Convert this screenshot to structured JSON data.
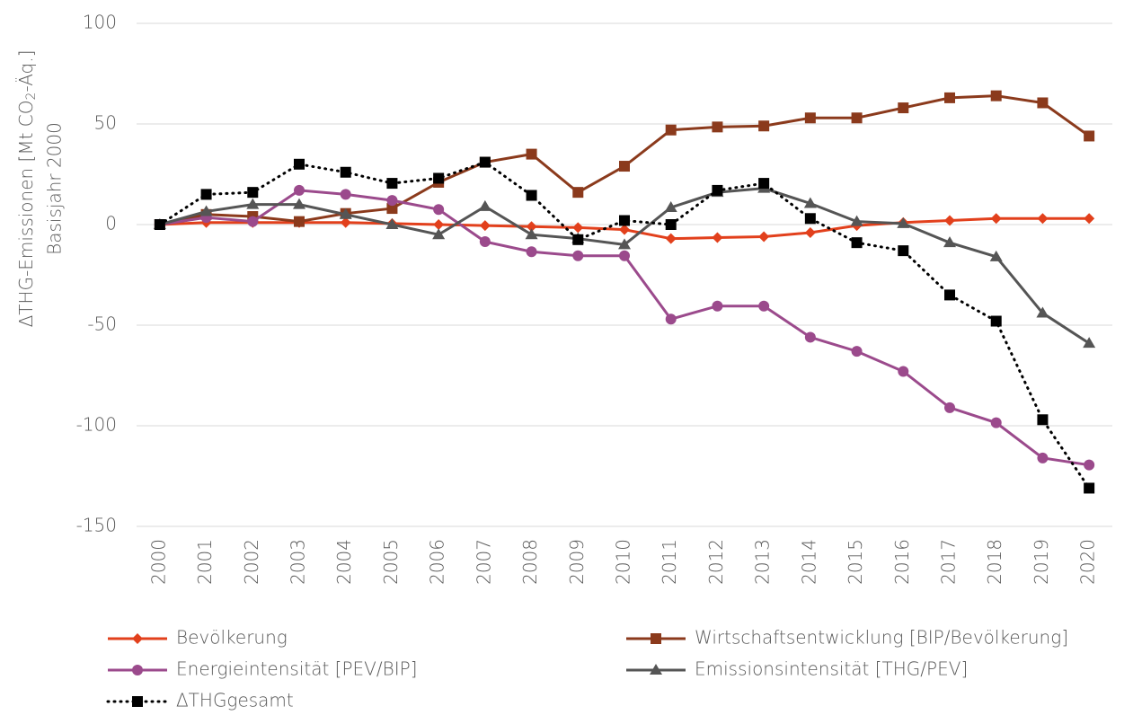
{
  "chart_data": {
    "type": "line",
    "ylabel": [
      "ΔTHG-Emissionen  [Mt CO",
      "2",
      "-Äq.]"
    ],
    "ylabel2": "Basisjahr 2000",
    "categories": [
      "2000",
      "2001",
      "2002",
      "2003",
      "2004",
      "2005",
      "2006",
      "2007",
      "2008",
      "2009",
      "2010",
      "2011",
      "2012",
      "2013",
      "2014",
      "2015",
      "2016",
      "2017",
      "2018",
      "2019",
      "2020"
    ],
    "ylim": [
      -150,
      100
    ],
    "yticks": [
      -150,
      -100,
      -50,
      0,
      50,
      100
    ],
    "grid": true,
    "legend": "bottom",
    "series": [
      {
        "name": "Bevölkerung",
        "color": "#e2401c",
        "marker": "diamond",
        "style": "solid",
        "values": [
          0,
          1,
          1,
          1,
          1,
          0.5,
          0,
          -0.5,
          -1,
          -1.5,
          -2.5,
          -7,
          -6.5,
          -6,
          -4,
          -0.5,
          1,
          2,
          3,
          3,
          3
        ]
      },
      {
        "name": "Wirtschaftsentwicklung [BIP/Bevölkerung]",
        "color": "#8b3a1c",
        "marker": "square",
        "style": "solid",
        "values": [
          0,
          5,
          4,
          1.5,
          5.5,
          8,
          21,
          31,
          35,
          16,
          29,
          47,
          48.5,
          49,
          53,
          53,
          58,
          63,
          64,
          60.5,
          44
        ]
      },
      {
        "name": "Energieintensität [PEV/BIP]",
        "color": "#9b4a8c",
        "marker": "circle",
        "style": "solid",
        "values": [
          0,
          3.5,
          1.5,
          17,
          15,
          12,
          7.5,
          -8.5,
          -13.5,
          -15.5,
          -15.5,
          -47,
          -40.5,
          -40.5,
          -56,
          -63,
          -73,
          -91,
          -98.5,
          -116,
          -119.5
        ]
      },
      {
        "name": "Emissionsintensität [THG/PEV]",
        "color": "#555555",
        "marker": "triangle",
        "style": "solid",
        "values": [
          0,
          6.5,
          10,
          10,
          5,
          0,
          -5,
          9,
          -5,
          -7,
          -10,
          8.5,
          16,
          18,
          10.5,
          1.5,
          0.5,
          -9,
          -16,
          -44,
          -59
        ]
      },
      {
        "name": "ΔTHGgesamt",
        "color": "#000000",
        "marker": "square",
        "style": "dotted",
        "values": [
          0,
          15,
          16,
          30,
          26,
          20.5,
          23,
          31,
          14.5,
          -7.5,
          2,
          0,
          17,
          20.5,
          3,
          -9,
          -13,
          -35,
          -48,
          -97,
          -131
        ]
      }
    ]
  }
}
